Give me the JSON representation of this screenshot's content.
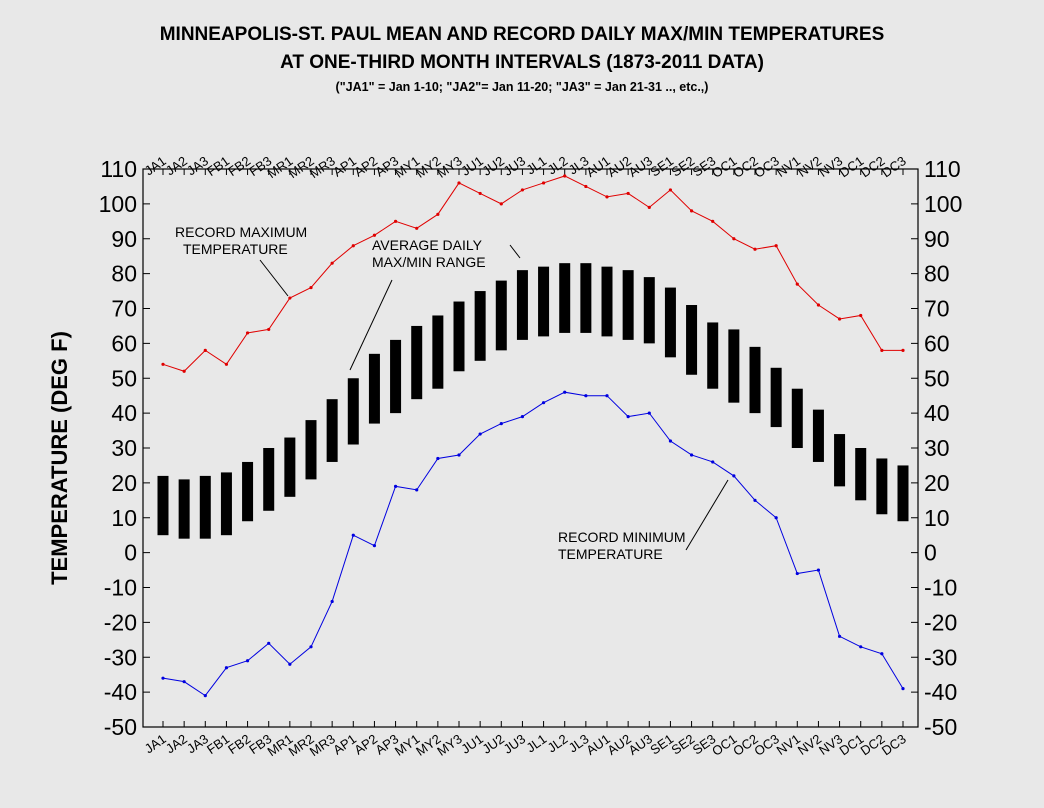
{
  "title_line1": "MINNEAPOLIS-ST. PAUL MEAN AND RECORD DAILY MAX/MIN TEMPERATURES",
  "title_line2": "AT ONE-THIRD MONTH INTERVALS (1873-2011 DATA)",
  "title_note": "(\"JA1\" = Jan 1-10; \"JA2\"= Jan 11-20; \"JA3\" = Jan 21-31 .., etc.,)",
  "colors": {
    "background": "#e8e8e8",
    "record_max": "#e00000",
    "record_min": "#0000e0",
    "range_bar": "#000000"
  },
  "chart_data": {
    "type": "line",
    "categories": [
      "JA1",
      "JA2",
      "JA3",
      "FB1",
      "FB2",
      "FB3",
      "MR1",
      "MR2",
      "MR3",
      "AP1",
      "AP2",
      "AP3",
      "MY1",
      "MY2",
      "MY3",
      "JU1",
      "JU2",
      "JU3",
      "JL1",
      "JL2",
      "JL3",
      "AU1",
      "AU2",
      "AU3",
      "SE1",
      "SE2",
      "SE3",
      "OC1",
      "OC2",
      "OC3",
      "NV1",
      "NV2",
      "NV3",
      "DC1",
      "DC2",
      "DC3"
    ],
    "ylabel": "TEMPERATURE (DEG F)",
    "ylim": [
      -50,
      110
    ],
    "yticks": [
      110,
      100,
      90,
      80,
      70,
      60,
      50,
      40,
      30,
      20,
      10,
      0,
      -10,
      -20,
      -30,
      -40,
      -50
    ],
    "grid": false,
    "legend": "none",
    "series": [
      {
        "values": [
          54,
          52,
          58,
          54,
          63,
          64,
          73,
          76,
          83,
          88,
          91,
          95,
          93,
          97,
          106,
          103,
          100,
          104,
          106,
          108,
          105,
          102,
          103,
          99,
          104,
          98,
          95,
          90,
          87,
          88,
          77,
          71,
          67,
          68,
          58,
          58
        ]
      },
      {
        "values": [
          -36,
          -37,
          -41,
          -33,
          -31,
          -26,
          -32,
          -27,
          -14,
          5,
          2,
          19,
          18,
          27,
          28,
          34,
          37,
          39,
          43,
          46,
          45,
          45,
          39,
          40,
          32,
          28,
          26,
          22,
          15,
          10,
          -6,
          -5,
          -24,
          -27,
          -29,
          -39
        ]
      },
      {
        "type": "floating-bar",
        "low": [
          5,
          4,
          4,
          5,
          9,
          12,
          16,
          21,
          26,
          31,
          37,
          40,
          44,
          47,
          52,
          55,
          58,
          61,
          62,
          63,
          63,
          62,
          61,
          60,
          56,
          51,
          47,
          43,
          40,
          36,
          30,
          26,
          19,
          15,
          11,
          9
        ],
        "high": [
          22,
          21,
          22,
          23,
          26,
          30,
          33,
          38,
          44,
          50,
          57,
          61,
          65,
          68,
          72,
          75,
          78,
          81,
          82,
          83,
          83,
          82,
          81,
          79,
          76,
          71,
          66,
          64,
          59,
          53,
          47,
          41,
          34,
          30,
          27,
          25
        ]
      }
    ],
    "annotations": [
      {
        "line1": "RECORD MAXIMUM",
        "line2": "TEMPERATURE"
      },
      {
        "line1": "AVERAGE DAILY",
        "line2": "MAX/MIN RANGE"
      },
      {
        "line1": "RECORD MINIMUM",
        "line2": "TEMPERATURE"
      }
    ]
  }
}
